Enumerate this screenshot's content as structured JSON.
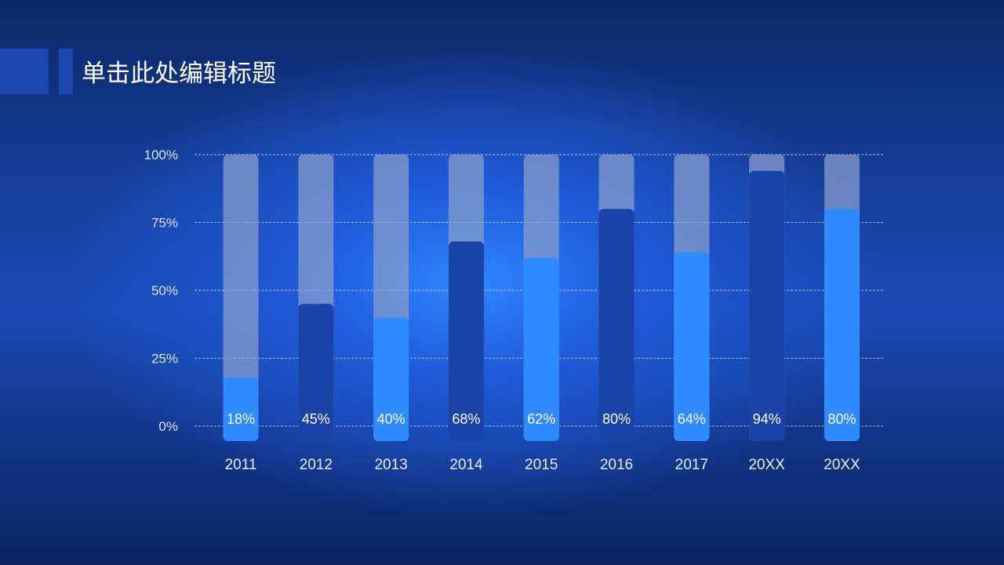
{
  "slide": {
    "title": "单击此处编辑标题"
  },
  "colors": {
    "track": "#8a9fcc",
    "bar_light": "#2f8cff",
    "bar_dark": "#1a43a8",
    "grid": "#dbe6ff"
  },
  "chart_data": {
    "type": "bar",
    "categories": [
      "2011",
      "2012",
      "2013",
      "2014",
      "2015",
      "2016",
      "2017",
      "20XX",
      "20XX"
    ],
    "values": [
      18,
      45,
      40,
      68,
      62,
      80,
      64,
      94,
      80
    ],
    "value_labels": [
      "18%",
      "45%",
      "40%",
      "68%",
      "62%",
      "80%",
      "64%",
      "94%",
      "80%"
    ],
    "bar_styles": [
      "light",
      "dark",
      "light",
      "dark",
      "light",
      "dark",
      "light",
      "dark",
      "light"
    ],
    "yticks": [
      0,
      25,
      50,
      75,
      100
    ],
    "ytick_labels": [
      "0%",
      "25%",
      "50%",
      "75%",
      "100%"
    ],
    "ylim": [
      0,
      100
    ],
    "grid": true,
    "title": "",
    "xlabel": "",
    "ylabel": ""
  }
}
